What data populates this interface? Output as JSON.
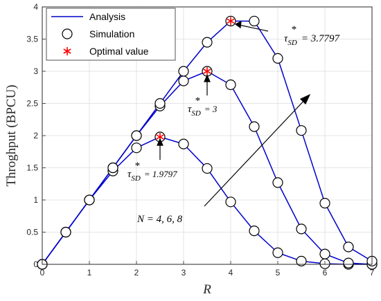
{
  "chart_data": {
    "type": "line",
    "xlabel": "R",
    "ylabel": "Throghput (BPCU)",
    "xlim": [
      0,
      7
    ],
    "ylim": [
      0,
      4
    ],
    "xticks": [
      "0",
      "1",
      "2",
      "3",
      "4",
      "5",
      "6",
      "7"
    ],
    "yticks": [
      "0",
      "0.5",
      "1",
      "1.5",
      "2",
      "2.5",
      "3",
      "3.5",
      "4"
    ],
    "grid": true,
    "legend_position": "top-left",
    "legend": [
      "Analysis",
      "Simulation",
      "Optimal value"
    ],
    "colors": {
      "analysis": "#0000cc",
      "simulation": "#000000",
      "optimal": "#ff0000"
    },
    "x": [
      0,
      0.5,
      1,
      1.5,
      2,
      2.5,
      3,
      3.5,
      4,
      4.5,
      5,
      5.5,
      6,
      6.5,
      7
    ],
    "series": [
      {
        "values": [
          0,
          0.5,
          1.0,
          1.45,
          1.81,
          1.98,
          1.87,
          1.49,
          0.97,
          0.52,
          0.18,
          0.05,
          0.01,
          0.0,
          0.0
        ]
      },
      {
        "values": [
          0,
          0.5,
          1.0,
          1.5,
          2.0,
          2.46,
          2.85,
          3.0,
          2.79,
          2.14,
          1.27,
          0.55,
          0.16,
          0.02,
          0.0
        ]
      },
      {
        "values": [
          0,
          0.5,
          1.0,
          1.5,
          2.0,
          2.5,
          3.0,
          3.45,
          3.78,
          3.78,
          3.2,
          2.08,
          0.95,
          0.27,
          0.05
        ]
      }
    ],
    "optimal_points": [
      {
        "x": 2.5,
        "y": 1.9797
      },
      {
        "x": 3.5,
        "y": 3.0
      },
      {
        "x": 4.0,
        "y": 3.7797
      }
    ],
    "annotations": [
      {
        "symbol": "τ",
        "sup": "*",
        "sub": "SD",
        "value_text": "= 1.9797"
      },
      {
        "symbol": "τ",
        "sup": "*",
        "sub": "SD",
        "value_text": "= 3"
      },
      {
        "symbol": "τ",
        "sup": "*",
        "sub": "SD",
        "value_text": "= 3.7797"
      },
      {
        "text": "N = 4, 6, 8"
      }
    ]
  }
}
